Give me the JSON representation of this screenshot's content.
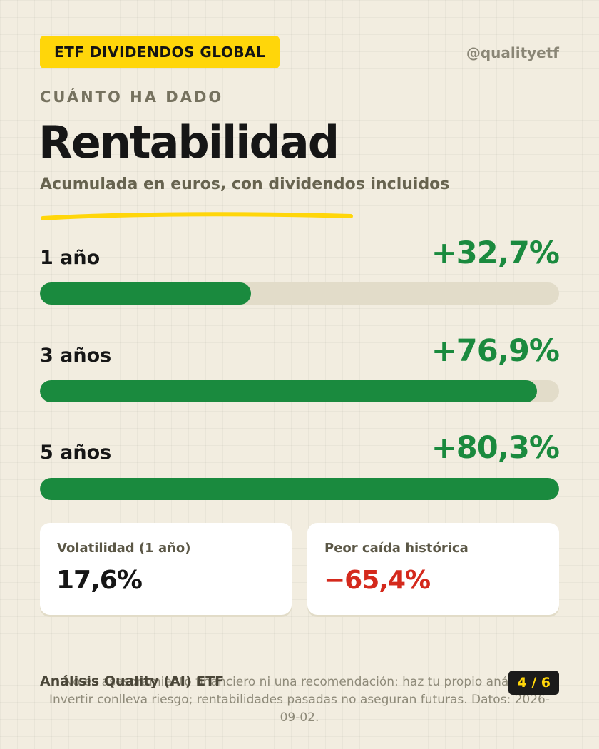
{
  "header": {
    "badge": "ETF DIVIDENDOS GLOBAL",
    "handle": "@qualityetf",
    "eyebrow": "CUÁNTO HA DADO",
    "title": "Rentabilidad",
    "subtitle": "Acumulada en euros, con dividendos incluidos"
  },
  "chart_data": {
    "type": "bar",
    "orientation": "horizontal",
    "title": "Rentabilidad",
    "subtitle": "Acumulada en euros, con dividendos incluidos",
    "categories": [
      "1 año",
      "3 años",
      "5 años"
    ],
    "values": [
      32.7,
      76.9,
      80.3
    ],
    "value_labels": [
      "+32,7%",
      "+76,9%",
      "+80,3%"
    ],
    "xlim": [
      0,
      80.3
    ],
    "grid": false,
    "colors": {
      "fill": "#1a8a3e",
      "track": "#e2dcc9"
    }
  },
  "stats": [
    {
      "label": "Volatilidad (1 año)",
      "value": "17,6%"
    },
    {
      "label": "Peor caída histórica",
      "value": "−65,4%"
    }
  ],
  "footer": {
    "left": "Análisis Quality (AI) ETF",
    "disclaimer": "No es asesoramiento financiero ni una recomendación: haz tu propio análisis. Invertir conlleva riesgo; rentabilidades pasadas no aseguran futuras. Datos: 2026-09-02.",
    "page": "4 / 6"
  },
  "colors": {
    "accent": "#ffd60a",
    "positive": "#1a8a3e",
    "negative": "#d4291c",
    "background": "#f2ede0"
  }
}
